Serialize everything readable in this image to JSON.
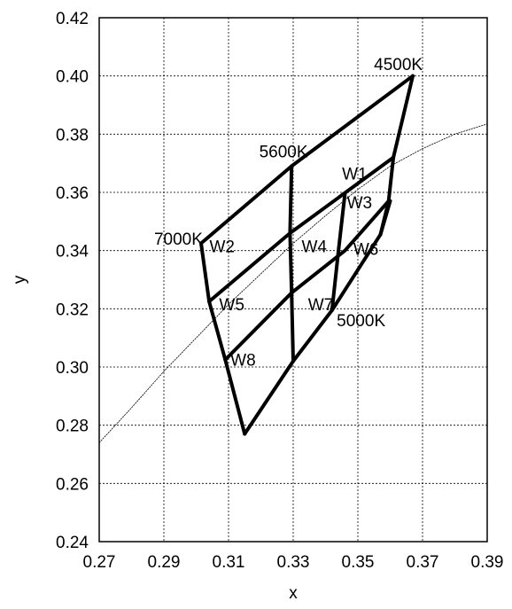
{
  "chart_data": {
    "type": "line",
    "xlabel": "x",
    "ylabel": "y",
    "xlim": [
      0.27,
      0.39
    ],
    "ylim": [
      0.24,
      0.42
    ],
    "x_ticks": [
      "0.27",
      "0.29",
      "0.31",
      "0.33",
      "0.35",
      "0.37",
      "0.39"
    ],
    "y_ticks": [
      "0.24",
      "0.26",
      "0.28",
      "0.30",
      "0.32",
      "0.34",
      "0.36",
      "0.38",
      "0.40",
      "0.42"
    ],
    "grid": true,
    "cct_labels": [
      {
        "text": "4500K",
        "x": 0.3625,
        "y": 0.4035
      },
      {
        "text": "5600K",
        "x": 0.327,
        "y": 0.3735
      },
      {
        "text": "7000K",
        "x": 0.2945,
        "y": 0.3435
      },
      {
        "text": "5000K",
        "x": 0.351,
        "y": 0.3155
      }
    ],
    "bin_labels": [
      {
        "text": "W1",
        "x": 0.349,
        "y": 0.366
      },
      {
        "text": "W2",
        "x": 0.308,
        "y": 0.341
      },
      {
        "text": "W3",
        "x": 0.3505,
        "y": 0.356
      },
      {
        "text": "W4",
        "x": 0.3365,
        "y": 0.341
      },
      {
        "text": "W5",
        "x": 0.311,
        "y": 0.321
      },
      {
        "text": "W6",
        "x": 0.3525,
        "y": 0.34
      },
      {
        "text": "W7",
        "x": 0.3385,
        "y": 0.321
      },
      {
        "text": "W8",
        "x": 0.3145,
        "y": 0.302
      }
    ],
    "series": [
      {
        "values": [
          [
            0.3015,
            0.3425
          ],
          [
            0.3295,
            0.369
          ],
          [
            0.367,
            0.4
          ]
        ]
      },
      {
        "values": [
          [
            0.304,
            0.3225
          ],
          [
            0.329,
            0.346
          ],
          [
            0.361,
            0.372
          ]
        ]
      },
      {
        "values": [
          [
            0.309,
            0.3025
          ],
          [
            0.3295,
            0.3255
          ],
          [
            0.346,
            0.34
          ],
          [
            0.3595,
            0.357
          ]
        ]
      },
      {
        "values": [
          [
            0.315,
            0.277
          ],
          [
            0.33,
            0.302
          ],
          [
            0.342,
            0.3195
          ],
          [
            0.357,
            0.3455
          ],
          [
            0.36,
            0.357
          ]
        ]
      },
      {
        "values": [
          [
            0.3015,
            0.3425
          ],
          [
            0.304,
            0.3225
          ],
          [
            0.309,
            0.3025
          ],
          [
            0.315,
            0.277
          ]
        ]
      },
      {
        "values": [
          [
            0.3295,
            0.369
          ],
          [
            0.329,
            0.346
          ],
          [
            0.3295,
            0.3255
          ],
          [
            0.33,
            0.302
          ]
        ]
      },
      {
        "values": [
          [
            0.346,
            0.3595
          ],
          [
            0.344,
            0.34
          ],
          [
            0.342,
            0.3195
          ]
        ]
      },
      {
        "values": [
          [
            0.367,
            0.4
          ],
          [
            0.361,
            0.372
          ],
          [
            0.3595,
            0.357
          ],
          [
            0.357,
            0.3455
          ]
        ]
      },
      {
        "values": [
          [
            0.27,
            0.274
          ],
          [
            0.28,
            0.286
          ],
          [
            0.29,
            0.2985
          ],
          [
            0.3,
            0.31
          ],
          [
            0.31,
            0.3215
          ],
          [
            0.32,
            0.332
          ],
          [
            0.33,
            0.3425
          ],
          [
            0.34,
            0.352
          ],
          [
            0.35,
            0.361
          ],
          [
            0.36,
            0.369
          ],
          [
            0.37,
            0.375
          ],
          [
            0.38,
            0.38
          ],
          [
            0.39,
            0.3835
          ]
        ]
      }
    ]
  }
}
